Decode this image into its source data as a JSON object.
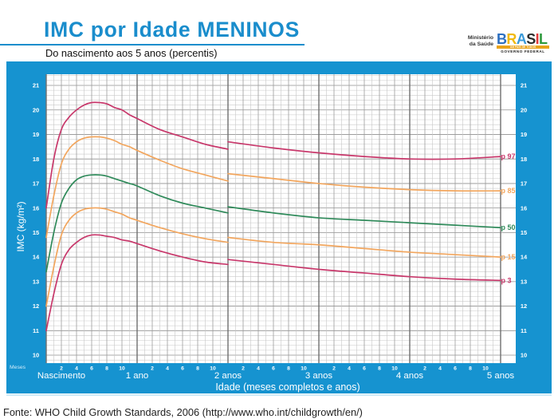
{
  "header": {
    "title": "IMC por Idade MENINOS",
    "subtitle": "Do nascimento aos 5 anos (percentis)",
    "logo": {
      "ministry_line1": "Ministério",
      "ministry_line2": "da Saúde",
      "brand_letters": [
        "B",
        "R",
        "A",
        "S",
        "I",
        "L"
      ],
      "tagline": "UM PAÍS DE TODOS",
      "government": "GOVERNO FEDERAL"
    }
  },
  "chart": {
    "months_label": "Meses",
    "month_ticks": [
      "2",
      "4",
      "6",
      "8",
      "10"
    ],
    "year_labels": [
      "Nascimento",
      "1 ano",
      "2 anos",
      "3 anos",
      "4 anos",
      "5 anos"
    ],
    "xlabel": "Idade (meses completos e anos)",
    "ylabel": "IMC (kg/m²)"
  },
  "footer": {
    "source": "Fonte: WHO Child Growth Standards, 2006 (http://www.who.int/childgrowth/en/)"
  },
  "colors": {
    "title_blue": "#1a8dcc",
    "panel_blue": "#1693d0",
    "p97": "#c8386b",
    "p85": "#f2a65e",
    "p50": "#2f8a5a",
    "p15": "#f2a65e",
    "p3": "#c8386b"
  },
  "chart_data": {
    "type": "line",
    "title": "IMC por Idade MENINOS",
    "subtitle": "Do nascimento aos 5 anos (percentis)",
    "xlabel": "Idade (meses completos e anos)",
    "ylabel": "IMC (kg/m²)",
    "x_unit": "meses",
    "xlim": [
      0,
      60
    ],
    "ylim": [
      10,
      21
    ],
    "yticks": [
      10,
      11,
      12,
      13,
      14,
      15,
      16,
      17,
      18,
      19,
      20,
      21
    ],
    "x_major_ticks": [
      {
        "month": 0,
        "label": "Nascimento"
      },
      {
        "month": 12,
        "label": "1 ano"
      },
      {
        "month": 24,
        "label": "2 anos"
      },
      {
        "month": 36,
        "label": "3 anos"
      },
      {
        "month": 48,
        "label": "4 anos"
      },
      {
        "month": 60,
        "label": "5 anos"
      }
    ],
    "x_minor_ticks_each_year": [
      2,
      4,
      6,
      8,
      10
    ],
    "grid": true,
    "legend_position": "right, labels at line ends",
    "x_0_24": [
      0,
      1,
      2,
      3,
      4,
      5,
      6,
      7,
      8,
      9,
      10,
      11,
      12,
      15,
      18,
      21,
      24
    ],
    "x_24_60": [
      24,
      30,
      36,
      42,
      48,
      54,
      60
    ],
    "series": [
      {
        "name": "p 97",
        "percentile": 97,
        "color": "#c8386b",
        "values_0_24": [
          16.0,
          18.0,
          19.2,
          19.7,
          20.0,
          20.2,
          20.3,
          20.3,
          20.25,
          20.1,
          20.0,
          19.8,
          19.65,
          19.2,
          18.9,
          18.6,
          18.4
        ],
        "values_24_60": [
          18.7,
          18.45,
          18.25,
          18.1,
          18.0,
          18.0,
          18.1
        ]
      },
      {
        "name": "p 85",
        "percentile": 85,
        "color": "#f2a65e",
        "values_0_24": [
          14.8,
          16.5,
          17.8,
          18.4,
          18.7,
          18.85,
          18.9,
          18.9,
          18.85,
          18.75,
          18.6,
          18.5,
          18.35,
          17.95,
          17.6,
          17.35,
          17.1
        ],
        "values_24_60": [
          17.4,
          17.2,
          17.0,
          16.85,
          16.75,
          16.7,
          16.7
        ]
      },
      {
        "name": "p 50",
        "percentile": 50,
        "color": "#2f8a5a",
        "values_0_24": [
          13.4,
          15.0,
          16.2,
          16.8,
          17.15,
          17.3,
          17.35,
          17.35,
          17.3,
          17.2,
          17.1,
          17.0,
          16.9,
          16.5,
          16.2,
          16.0,
          15.8
        ],
        "values_24_60": [
          16.05,
          15.8,
          15.6,
          15.5,
          15.4,
          15.3,
          15.2
        ]
      },
      {
        "name": "p 15",
        "percentile": 15,
        "color": "#f2a65e",
        "values_0_24": [
          12.0,
          13.6,
          14.9,
          15.5,
          15.8,
          15.95,
          16.0,
          16.0,
          15.95,
          15.85,
          15.75,
          15.6,
          15.5,
          15.2,
          14.95,
          14.75,
          14.6
        ],
        "values_24_60": [
          14.8,
          14.6,
          14.5,
          14.35,
          14.2,
          14.1,
          14.0
        ]
      },
      {
        "name": "p 3",
        "percentile": 3,
        "color": "#c8386b",
        "values_0_24": [
          11.0,
          12.5,
          13.7,
          14.3,
          14.6,
          14.8,
          14.9,
          14.9,
          14.85,
          14.8,
          14.7,
          14.65,
          14.55,
          14.25,
          14.0,
          13.8,
          13.7
        ],
        "values_24_60": [
          13.9,
          13.7,
          13.5,
          13.35,
          13.2,
          13.1,
          13.05
        ]
      }
    ]
  }
}
